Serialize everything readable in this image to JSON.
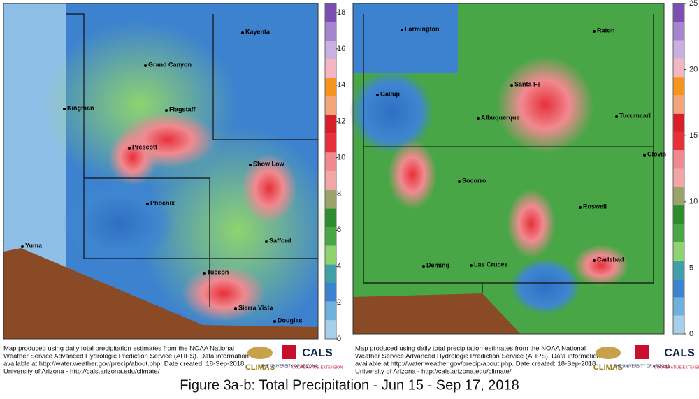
{
  "maps": [
    {
      "cities": [
        "Kayenta",
        "Grand Canyon",
        "Kingman",
        "Flagstaff",
        "Prescott",
        "Show Low",
        "Phoenix",
        "Safford",
        "Yuma",
        "Tucson",
        "Sierra Vista",
        "Douglas"
      ],
      "colorbar": {
        "range": [
          0,
          18.5
        ],
        "ticks": [
          0,
          2,
          4,
          6,
          8,
          10,
          12,
          14,
          16,
          18
        ]
      },
      "credit": [
        "Map produced using daily total precipitation estimates from the NOAA National",
        "Weather Service Advanced Hydrologic Prediction Service (AHPS). Data information",
        "available at http://water.weather.gov/precip/about.php. Date created: 18-Sep-2018",
        "University of Arizona - http://cals.arizona.edu/climate/"
      ]
    },
    {
      "cities": [
        "Farmington",
        "Raton",
        "Gallup",
        "Santa Fe",
        "Albuquerque",
        "Tucumcari",
        "Clovis",
        "Socorro",
        "Roswell",
        "Deming",
        "Las Cruces",
        "Carlsbad"
      ],
      "colorbar": {
        "range": [
          0,
          25
        ],
        "ticks": [
          0,
          5,
          10,
          15,
          20,
          25
        ]
      },
      "credit": [
        "Map produced using daily total precipitation estimates from the NOAA National",
        "Weather Service Advanced Hydrologic Prediction Service (AHPS). Data information",
        "available at http://water.weather.gov/precip/about.php. Date created: 18-Sep-2018",
        "University of Arizona - http://cals.arizona.edu/climate/"
      ]
    }
  ],
  "logos": [
    "CLIMAS",
    "THE UNIVERSITY OF ARIZONA",
    "CALS",
    "COOPERATIVE EXTENSION"
  ],
  "caption": "Figure 3a-b: Total Precipitation - Jun 15 - Sep 17, 2018"
}
